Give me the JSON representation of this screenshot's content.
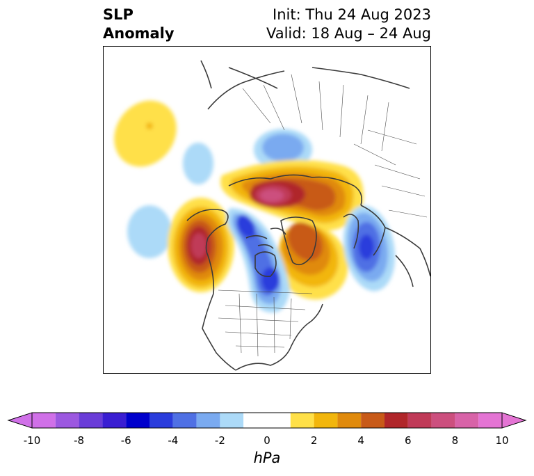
{
  "title": {
    "left": "SLP\nAnomaly",
    "right": "Init: Thu 24 Aug 2023\nValid: 18 Aug – 24 Aug"
  },
  "colorbar": {
    "units": "hPa",
    "tick_labels": [
      "-10",
      "-8",
      "-6",
      "-4",
      "-2",
      "0",
      "2",
      "4",
      "6",
      "8",
      "10"
    ],
    "levels": [
      -10,
      -9,
      -8,
      -7,
      -6,
      -5,
      -4,
      -3,
      -2,
      -1,
      1,
      2,
      3,
      4,
      5,
      6,
      7,
      8,
      9,
      10
    ],
    "colors": [
      "#d070e8",
      "#9c58e0",
      "#6a3cd8",
      "#3a1ed2",
      "#0000cc",
      "#2a3cdc",
      "#4f70e4",
      "#7aaaf0",
      "#acdaf8",
      "#ffffff",
      "#ffe048",
      "#f2b60c",
      "#e08a0c",
      "#c85a18",
      "#b0262a",
      "#c03a58",
      "#cc4f7e",
      "#d863a8",
      "#e474d4"
    ],
    "extend": "both"
  },
  "map": {
    "projection": "north-polar-stereographic",
    "variable": "Sea level pressure anomaly"
  }
}
